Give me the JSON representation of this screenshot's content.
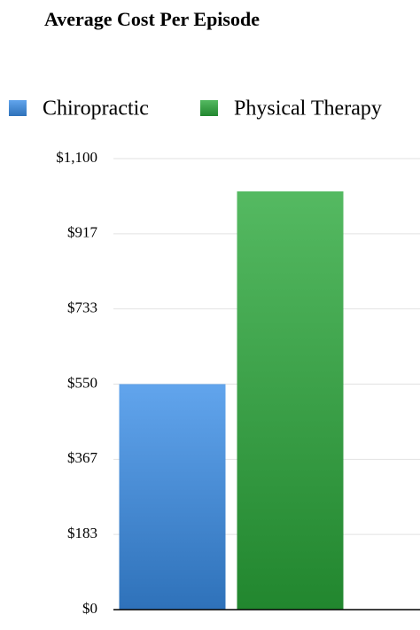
{
  "chart_data": {
    "type": "bar",
    "title": "Average Cost Per Episode",
    "categories": [
      null
    ],
    "series": [
      {
        "name": "Chiropractic",
        "color": "#3a8ee8",
        "values": [
          550
        ]
      },
      {
        "name": "Physical Therapy",
        "color": "#2aa83a",
        "values": [
          1020
        ]
      }
    ],
    "ylim": [
      0,
      1100
    ],
    "yticks": [
      {
        "value": 0,
        "label": "$0"
      },
      {
        "value": 183.33,
        "label": "$183"
      },
      {
        "value": 366.67,
        "label": "$367"
      },
      {
        "value": 550,
        "label": "$550"
      },
      {
        "value": 733.33,
        "label": "$733"
      },
      {
        "value": 916.67,
        "label": "$917"
      },
      {
        "value": 1100,
        "label": "$1,100"
      }
    ],
    "grid": true,
    "legend": "top"
  }
}
